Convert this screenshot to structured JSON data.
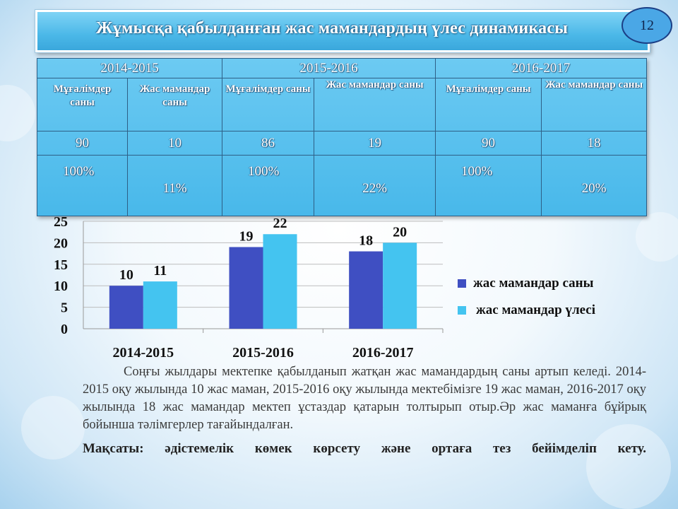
{
  "title": "Жұмысқа қабылданған жас мамандардың үлес динамикасы",
  "page_number": "12",
  "table": {
    "years": [
      "2014-2015",
      "2015-2016",
      "2016-2017"
    ],
    "headers": [
      "Мұғалімдер саны",
      "Жас мамандар саны",
      "Мұғалімдер саны",
      "Жас мамандар саны",
      "Мұғалімдер саны",
      "Жас мамандар саны"
    ],
    "counts": [
      "90",
      "10",
      "86",
      "19",
      "90",
      "18"
    ],
    "percents": [
      "100%",
      "11%",
      "100%",
      "22%",
      "100%",
      "20%"
    ]
  },
  "chart_data": {
    "type": "bar",
    "categories": [
      "2014-2015",
      "2015-2016",
      "2016-2017"
    ],
    "series": [
      {
        "name": "жас мамандар  саны",
        "values": [
          10,
          19,
          18
        ],
        "color": "#3f4fc2"
      },
      {
        "name": "жас мамандар үлесі",
        "values": [
          11,
          22,
          20
        ],
        "color": "#44c4f0"
      }
    ],
    "ylim": [
      0,
      25
    ],
    "yticks": [
      "0",
      "5",
      "10",
      "15",
      "20",
      "25"
    ],
    "grid": true,
    "legend": "right"
  },
  "paragraph": "Соңғы жылдары мектепке қабылданып жатқан жас мамандардың саны артып келеді. 2014-2015 оқу жылында 10 жас маман, 2015-2016 оқу жылында мектебімізге 19 жас маман, 2016-2017 оқу жылында 18 жас мамандар мектеп ұстаздар қатарын толтырып отыр.Әр жас маманға бұйрық бойынша тәлімгерлер тағайындалған.",
  "goal": "Мақсаты: әдістемелік көмек көрсету және ортаға тез бейімделіп кету."
}
